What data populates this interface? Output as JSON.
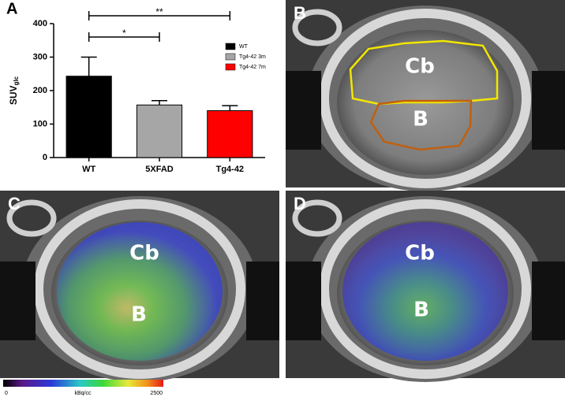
{
  "chart_data": {
    "type": "bar",
    "panel_label": "A",
    "ylabel": "SUV",
    "ylabel_sub": "glc",
    "categories": [
      "WT",
      "5XFAD",
      "Tg4-42"
    ],
    "values": [
      243,
      157,
      140
    ],
    "errors": [
      57,
      13,
      15
    ],
    "ylim": [
      0,
      400
    ],
    "yticks": [
      0,
      100,
      200,
      300,
      400
    ],
    "grid": false,
    "legend": [
      {
        "name": "WT",
        "color": "#000000"
      },
      {
        "name": "Tg4-42 3m",
        "color": "#a6a6a6"
      },
      {
        "name": "Tg4-42 7m",
        "color": "#ff0000"
      }
    ],
    "annotations": [
      {
        "text": "*",
        "between": [
          "WT",
          "5XFAD"
        ]
      },
      {
        "text": "**",
        "between": [
          "WT",
          "Tg4-42"
        ]
      }
    ]
  },
  "images": [
    {
      "panel": "B",
      "labels": [
        "Cb",
        "B"
      ]
    },
    {
      "panel": "C",
      "labels": [
        "Cb",
        "B"
      ]
    },
    {
      "panel": "D",
      "labels": [
        "Cb",
        "B"
      ]
    }
  ],
  "colorbar": {
    "min": 0,
    "max": 2500,
    "unit": "kBq/cc"
  }
}
